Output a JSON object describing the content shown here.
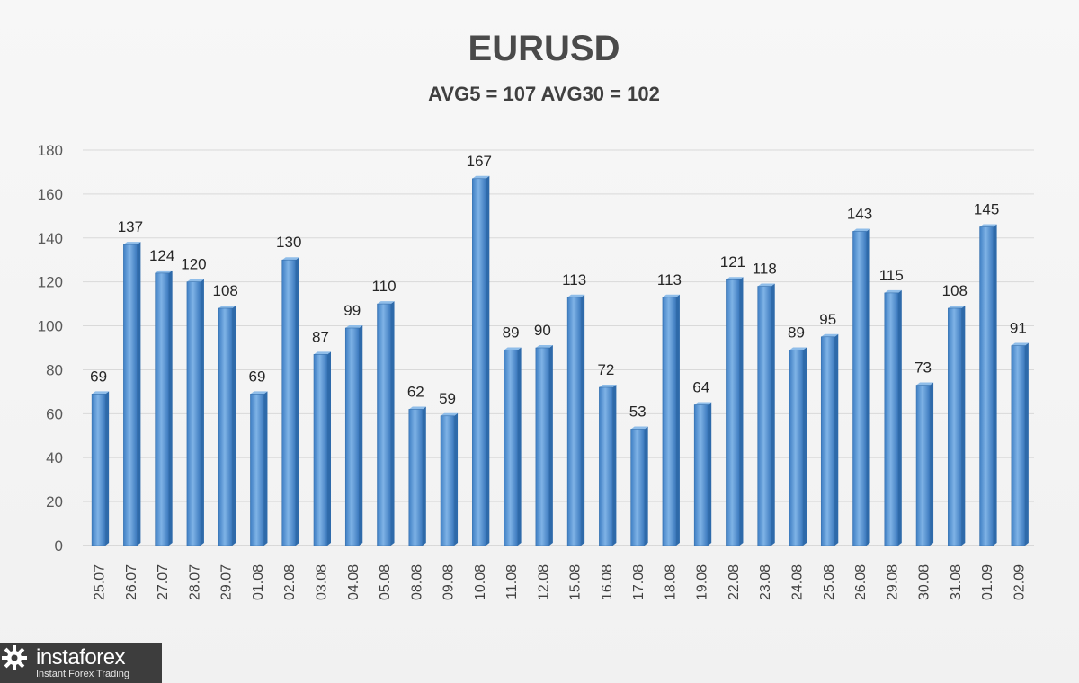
{
  "chart_data": {
    "type": "bar",
    "title": "EURUSD",
    "subtitle": "AVG5 = 107 AVG30 = 102",
    "categories": [
      "25.07",
      "26.07",
      "27.07",
      "28.07",
      "29.07",
      "01.08",
      "02.08",
      "03.08",
      "04.08",
      "05.08",
      "08.08",
      "09.08",
      "10.08",
      "11.08",
      "12.08",
      "15.08",
      "16.08",
      "17.08",
      "18.08",
      "19.08",
      "22.08",
      "23.08",
      "24.08",
      "25.08",
      "26.08",
      "29.08",
      "30.08",
      "31.08",
      "01.09",
      "02.09"
    ],
    "values": [
      69,
      137,
      124,
      120,
      108,
      69,
      130,
      87,
      99,
      110,
      62,
      59,
      167,
      89,
      90,
      113,
      72,
      53,
      113,
      64,
      121,
      118,
      89,
      95,
      143,
      115,
      73,
      108,
      145,
      91
    ],
    "yticks": [
      0,
      20,
      40,
      60,
      80,
      100,
      120,
      140,
      160,
      180
    ],
    "ylim": [
      0,
      180
    ],
    "grid": true,
    "legend": "none",
    "bar_color": "#5b9bd5"
  },
  "logo": {
    "name": "instaforex",
    "tagline": "Instant Forex Trading"
  }
}
